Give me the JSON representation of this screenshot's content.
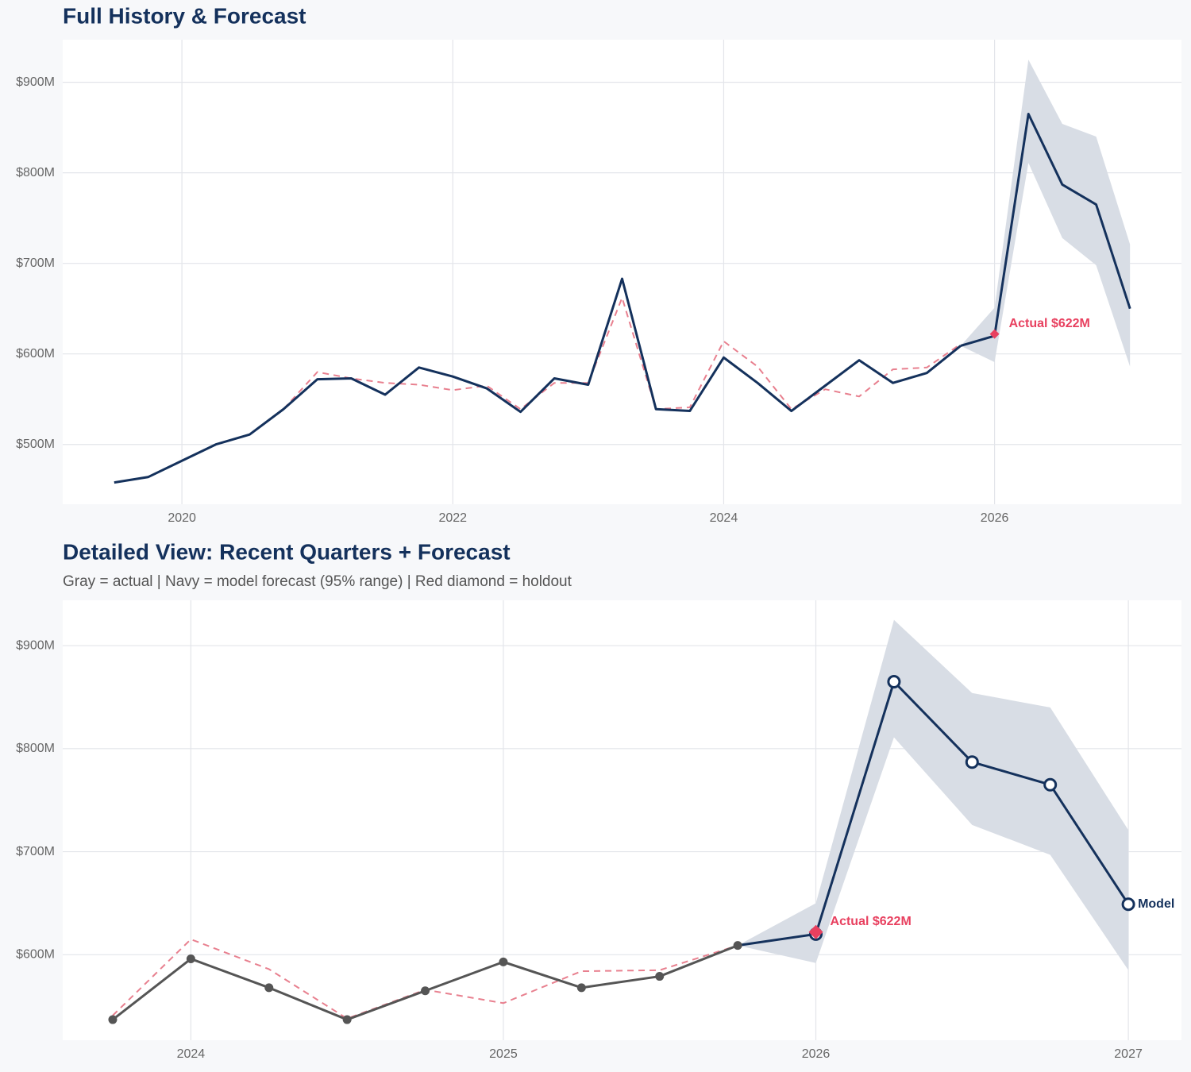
{
  "chart_data": [
    {
      "type": "line",
      "title": "Full History & Forecast",
      "x": [
        2019.5,
        2019.75,
        2020,
        2020.25,
        2020.5,
        2020.75,
        2021,
        2021.25,
        2021.5,
        2021.75,
        2022,
        2022.25,
        2022.5,
        2022.75,
        2023,
        2023.25,
        2023.5,
        2023.75,
        2024,
        2024.25,
        2024.5,
        2024.75,
        2025,
        2025.25,
        2025.5,
        2025.75,
        2026,
        2026.25,
        2026.5,
        2026.75,
        2027
      ],
      "xlim": [
        2019.12,
        2027.38
      ],
      "xticks": [
        2020,
        2022,
        2024,
        2026
      ],
      "ylim": [
        434,
        947
      ],
      "yticks": [
        {
          "value": 500,
          "label": "$500M"
        },
        {
          "value": 600,
          "label": "$600M"
        },
        {
          "value": 700,
          "label": "$700M"
        },
        {
          "value": 800,
          "label": "$800M"
        },
        {
          "value": 900,
          "label": "$900M"
        }
      ],
      "grid": true,
      "band": {
        "color": "#d8dde5",
        "lower": [
          null,
          null,
          null,
          null,
          null,
          null,
          null,
          null,
          null,
          null,
          null,
          null,
          null,
          null,
          null,
          null,
          null,
          null,
          null,
          null,
          null,
          null,
          null,
          null,
          null,
          609,
          591,
          811,
          728,
          698,
          586
        ],
        "upper": [
          null,
          null,
          null,
          null,
          null,
          null,
          null,
          null,
          null,
          null,
          null,
          null,
          null,
          null,
          null,
          null,
          null,
          null,
          null,
          null,
          null,
          null,
          null,
          null,
          null,
          609,
          651,
          925,
          854,
          840,
          721
        ]
      },
      "series": [
        {
          "color": "#e8808f",
          "dash": true,
          "values": [
            null,
            null,
            null,
            null,
            null,
            539,
            580,
            573,
            568,
            566,
            560,
            565,
            539,
            568,
            568,
            662,
            539,
            541,
            614,
            586,
            539,
            561,
            553,
            583,
            585,
            611,
            null,
            null,
            null,
            null,
            null
          ]
        },
        {
          "color": "#14315c",
          "values": [
            458,
            464,
            482,
            500,
            511,
            539,
            572,
            573,
            555,
            585,
            575,
            562,
            536,
            573,
            566,
            683,
            539,
            537,
            596,
            568,
            537,
            565,
            593,
            568,
            579,
            609,
            null,
            null,
            null,
            null,
            null
          ]
        },
        {
          "color": "#14315c",
          "values": [
            null,
            null,
            null,
            null,
            null,
            null,
            null,
            null,
            null,
            null,
            null,
            null,
            null,
            null,
            null,
            null,
            null,
            null,
            null,
            null,
            null,
            null,
            null,
            null,
            null,
            609,
            620,
            865,
            787,
            765,
            650
          ]
        }
      ],
      "holdout": {
        "x": 2026,
        "value": 622,
        "label": "Actual $622M",
        "color": "#e8405f"
      }
    },
    {
      "type": "line",
      "title": "Detailed View: Recent Quarters + Forecast",
      "subtitle": "Gray = actual  |  Navy = model forecast (95% range)  |  Red diamond = holdout",
      "x": [
        2023.75,
        2024,
        2024.25,
        2024.5,
        2024.75,
        2025,
        2025.25,
        2025.5,
        2025.75,
        2026,
        2026.25,
        2026.5,
        2026.75,
        2027
      ],
      "xlim": [
        2023.59,
        2027.17
      ],
      "xticks": [
        2024,
        2025,
        2026,
        2027
      ],
      "ylim": [
        517,
        944
      ],
      "yticks": [
        {
          "value": 600,
          "label": "$600M"
        },
        {
          "value": 700,
          "label": "$700M"
        },
        {
          "value": 800,
          "label": "$800M"
        },
        {
          "value": 900,
          "label": "$900M"
        }
      ],
      "grid": true,
      "band": {
        "color": "#d8dde5",
        "lower": [
          null,
          null,
          null,
          null,
          null,
          null,
          null,
          null,
          609,
          592,
          811,
          726,
          697,
          585
        ],
        "upper": [
          null,
          null,
          null,
          null,
          null,
          null,
          null,
          null,
          609,
          650,
          925,
          854,
          840,
          721
        ]
      },
      "series": [
        {
          "color": "#e8808f",
          "dash": true,
          "values": [
            541,
            615,
            586,
            538,
            566,
            553,
            584,
            585,
            609,
            null,
            null,
            null,
            null,
            null
          ]
        },
        {
          "color": "#555555",
          "markers": "filled",
          "values": [
            537,
            596,
            568,
            537,
            565,
            593,
            568,
            579,
            609,
            null,
            null,
            null,
            null,
            null
          ]
        },
        {
          "color": "#14315c",
          "markers": "open",
          "label": "Model",
          "values": [
            null,
            null,
            null,
            null,
            null,
            null,
            null,
            null,
            609,
            620,
            865,
            787,
            765,
            649
          ]
        }
      ],
      "holdout": {
        "x": 2026,
        "value": 622,
        "label": "Actual $622M",
        "color": "#e8405f"
      }
    }
  ]
}
